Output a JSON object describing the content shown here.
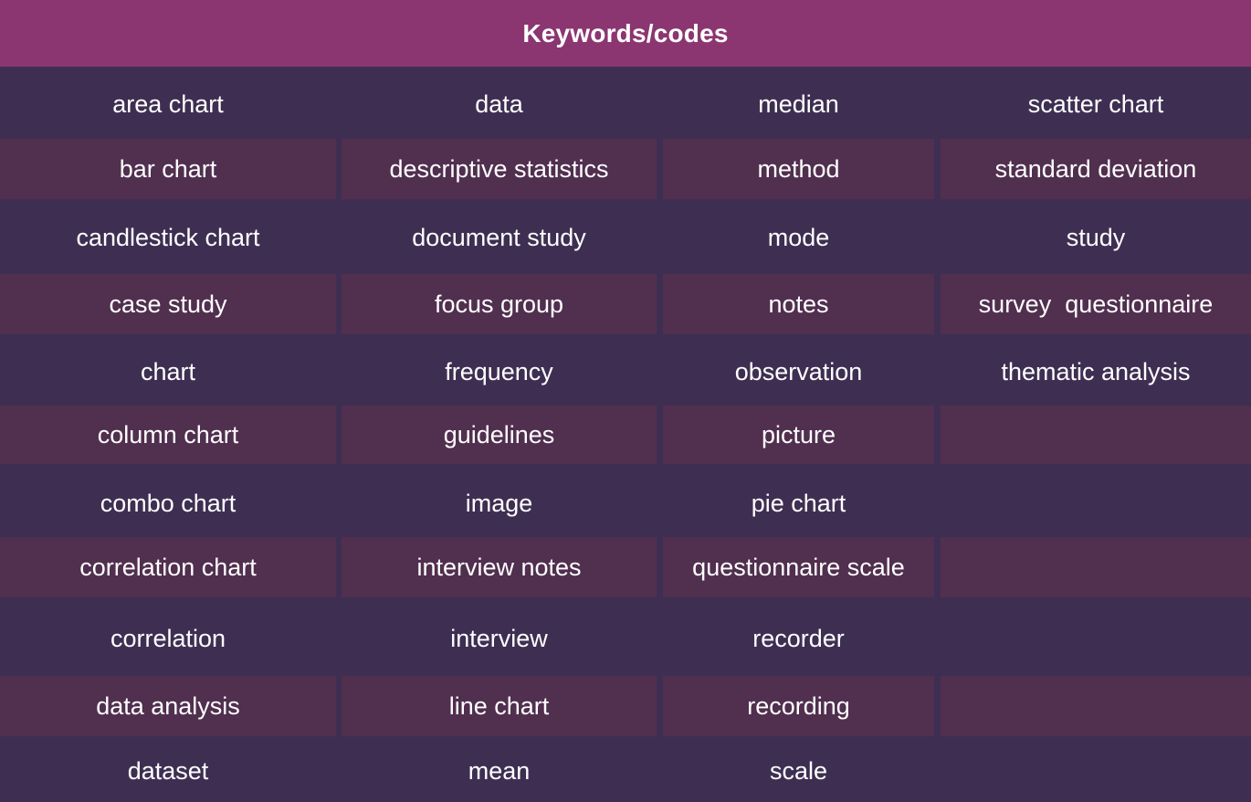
{
  "header": {
    "title": "Keywords/codes"
  },
  "colors": {
    "header": "#8b3670",
    "row_dark": "#3e2f52",
    "row_alt": "#512f4f",
    "text": "#ffffff"
  },
  "table": {
    "rows": [
      [
        "area chart",
        "data",
        "median",
        "scatter chart"
      ],
      [
        "bar chart",
        "descriptive statistics",
        "method",
        "standard deviation"
      ],
      [
        "candlestick chart",
        "document study",
        "mode",
        "study"
      ],
      [
        "case study",
        "focus group",
        "notes",
        "survey  questionnaire"
      ],
      [
        "chart",
        "frequency",
        "observation",
        "thematic analysis"
      ],
      [
        "column chart",
        "guidelines",
        "picture",
        ""
      ],
      [
        "combo chart",
        "image",
        "pie chart",
        ""
      ],
      [
        "correlation chart",
        "interview notes",
        "questionnaire scale",
        ""
      ],
      [
        "correlation",
        "interview",
        "recorder",
        ""
      ],
      [
        "data analysis",
        "line chart",
        "recording",
        ""
      ],
      [
        "dataset",
        "mean",
        "scale",
        ""
      ]
    ]
  }
}
